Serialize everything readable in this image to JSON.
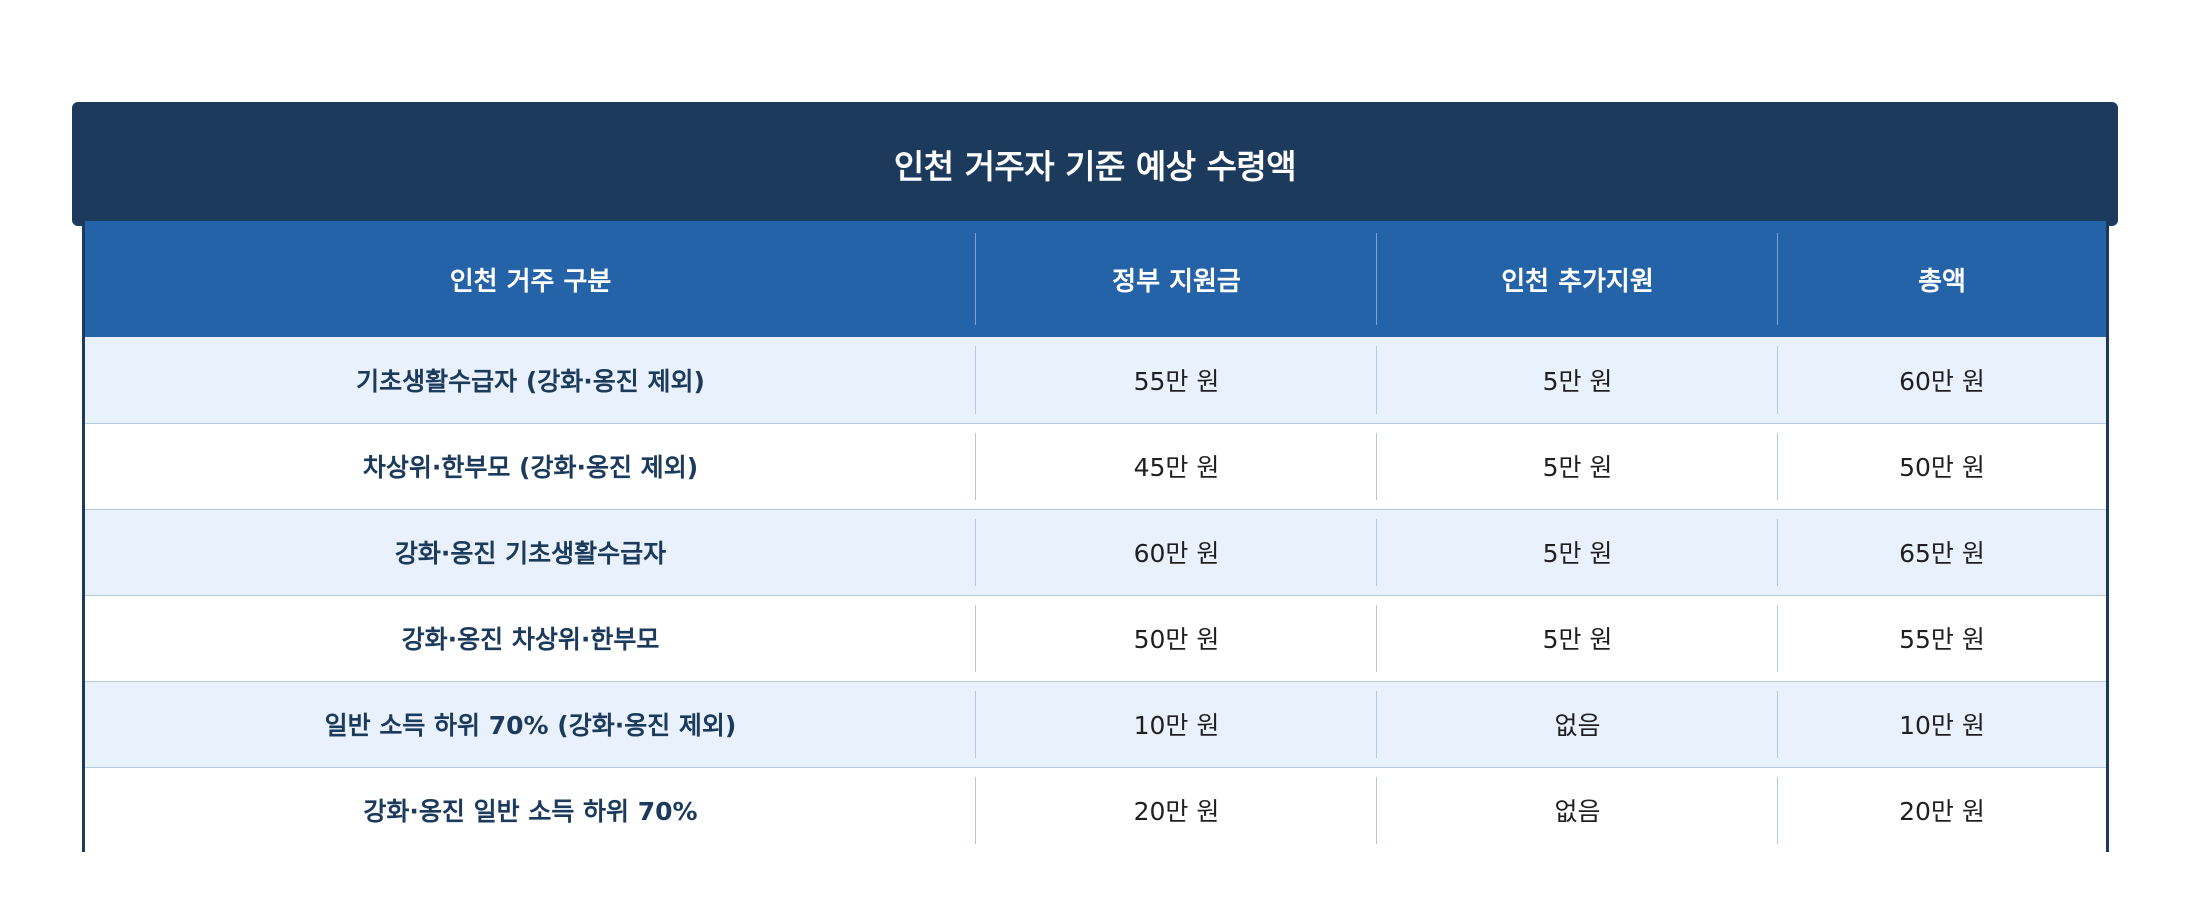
{
  "title": "인천 거주자 기준 예상 수령액",
  "headers": [
    "인천 거주 구분",
    "정부 지원금",
    "인천 추가지원",
    "총액"
  ],
  "rows": [
    {
      "category": "기초생활수급자 (강화·옹진 제외)",
      "gov": "55만 원",
      "incheon": "5만 원",
      "total": "60만 원"
    },
    {
      "category": "차상위·한부모 (강화·옹진 제외)",
      "gov": "45만 원",
      "incheon": "5만 원",
      "total": "50만 원"
    },
    {
      "category": "강화·옹진 기초생활수급자",
      "gov": "60만 원",
      "incheon": "5만 원",
      "total": "65만 원"
    },
    {
      "category": "강화·옹진 차상위·한부모",
      "gov": "50만 원",
      "incheon": "5만 원",
      "total": "55만 원"
    },
    {
      "category": "일반 소득 하위 70% (강화·옹진 제외)",
      "gov": "10만 원",
      "incheon": "없음",
      "total": "10만 원"
    },
    {
      "category": "강화·옹진 일반 소득 하위 70%",
      "gov": "20만 원",
      "incheon": "없음",
      "total": "20만 원"
    }
  ],
  "colors": {
    "title_bg": "#1b3a5c",
    "header_bg": "#2563a8",
    "row_alt_bg": "#e9f2fc",
    "category_text": "#1b3a5c"
  }
}
